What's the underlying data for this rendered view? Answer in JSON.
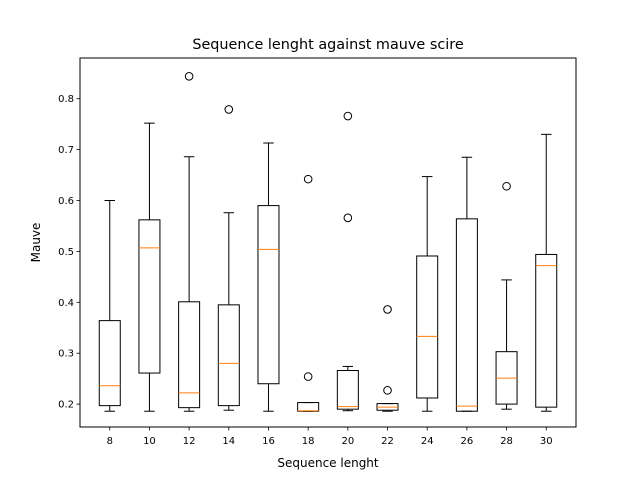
{
  "chart_data": {
    "type": "boxplot",
    "title": "Sequence lenght against mauve scire",
    "xlabel": "Sequence lenght",
    "ylabel": "Mauve",
    "ylim": [
      0.155,
      0.88
    ],
    "yticks": [
      "0.2",
      "0.3",
      "0.4",
      "0.5",
      "0.6",
      "0.7",
      "0.8"
    ],
    "grid": false,
    "median_color": "#ff7f0e",
    "box_color": "#000000",
    "categories": [
      "8",
      "10",
      "12",
      "14",
      "16",
      "18",
      "20",
      "22",
      "24",
      "26",
      "28",
      "30"
    ],
    "boxes": [
      {
        "x": "8",
        "whislo": 0.186,
        "q1": 0.197,
        "med": 0.236,
        "q3": 0.364,
        "whishi": 0.6,
        "fliers": []
      },
      {
        "x": "10",
        "whislo": 0.186,
        "q1": 0.261,
        "med": 0.507,
        "q3": 0.562,
        "whishi": 0.752,
        "fliers": []
      },
      {
        "x": "12",
        "whislo": 0.186,
        "q1": 0.193,
        "med": 0.222,
        "q3": 0.401,
        "whishi": 0.686,
        "fliers": [
          0.844
        ]
      },
      {
        "x": "14",
        "whislo": 0.188,
        "q1": 0.197,
        "med": 0.28,
        "q3": 0.395,
        "whishi": 0.576,
        "fliers": [
          0.779
        ]
      },
      {
        "x": "16",
        "whislo": 0.186,
        "q1": 0.24,
        "med": 0.504,
        "q3": 0.59,
        "whishi": 0.713,
        "fliers": []
      },
      {
        "x": "18",
        "whislo": 0.186,
        "q1": 0.186,
        "med": 0.187,
        "q3": 0.203,
        "whishi": 0.203,
        "fliers": [
          0.254,
          0.642
        ]
      },
      {
        "x": "20",
        "whislo": 0.187,
        "q1": 0.19,
        "med": 0.195,
        "q3": 0.266,
        "whishi": 0.274,
        "fliers": [
          0.566,
          0.766
        ]
      },
      {
        "x": "22",
        "whislo": 0.186,
        "q1": 0.188,
        "med": 0.194,
        "q3": 0.201,
        "whishi": 0.201,
        "fliers": [
          0.227,
          0.386
        ]
      },
      {
        "x": "24",
        "whislo": 0.186,
        "q1": 0.212,
        "med": 0.333,
        "q3": 0.491,
        "whishi": 0.647,
        "fliers": []
      },
      {
        "x": "26",
        "whislo": 0.186,
        "q1": 0.186,
        "med": 0.196,
        "q3": 0.564,
        "whishi": 0.685,
        "fliers": []
      },
      {
        "x": "28",
        "whislo": 0.19,
        "q1": 0.2,
        "med": 0.251,
        "q3": 0.303,
        "whishi": 0.444,
        "fliers": [
          0.628
        ]
      },
      {
        "x": "30",
        "whislo": 0.186,
        "q1": 0.194,
        "med": 0.472,
        "q3": 0.494,
        "whishi": 0.73,
        "fliers": []
      }
    ]
  }
}
